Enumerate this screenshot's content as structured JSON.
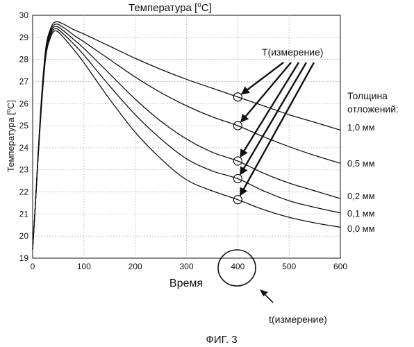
{
  "chart_data": {
    "type": "line",
    "title": "Температура [°C]",
    "title_main": "Температура ",
    "title_unit_o": "o",
    "title_unit_c": "C",
    "xlabel": "Время",
    "ylabel": "Температура [°C]",
    "ylabel_main": "Температура [",
    "ylabel_unit_o": "o",
    "ylabel_unit_c": "C]",
    "xlim": [
      0,
      600
    ],
    "ylim": [
      19,
      30
    ],
    "xticks": [
      0,
      100,
      200,
      300,
      400,
      500,
      600
    ],
    "yticks": [
      19,
      20,
      21,
      22,
      23,
      24,
      25,
      26,
      27,
      28,
      29,
      30
    ],
    "grid": true,
    "x": [
      0,
      5,
      15,
      25,
      35,
      45,
      60,
      80,
      100,
      150,
      200,
      250,
      300,
      350,
      400,
      450,
      500,
      550,
      600
    ],
    "series": [
      {
        "name": "1,0 мм",
        "values": [
          19.4,
          21.3,
          25.5,
          28.4,
          29.4,
          29.7,
          29.6,
          29.35,
          29.15,
          28.6,
          28.05,
          27.55,
          27.1,
          26.7,
          26.3,
          25.9,
          25.5,
          25.15,
          24.8
        ]
      },
      {
        "name": "0,5 мм",
        "values": [
          19.4,
          21.3,
          25.4,
          28.3,
          29.3,
          29.6,
          29.45,
          29.1,
          28.8,
          28.0,
          27.2,
          26.5,
          25.9,
          25.4,
          25.0,
          24.5,
          24.05,
          23.65,
          23.3
        ]
      },
      {
        "name": "0,2 мм",
        "values": [
          19.4,
          21.3,
          25.3,
          28.2,
          29.2,
          29.5,
          29.3,
          28.9,
          28.5,
          27.35,
          26.2,
          25.2,
          24.4,
          23.8,
          23.4,
          22.85,
          22.4,
          22.05,
          21.7
        ]
      },
      {
        "name": "0,1 мм",
        "values": [
          19.4,
          21.3,
          25.2,
          28.1,
          29.1,
          29.4,
          29.15,
          28.7,
          28.2,
          26.8,
          25.5,
          24.4,
          23.5,
          22.95,
          22.6,
          22.05,
          21.6,
          21.3,
          21.05
        ]
      },
      {
        "name": "0,0 мм",
        "values": [
          19.4,
          21.3,
          25.1,
          28.0,
          29.0,
          29.3,
          29.0,
          28.45,
          27.85,
          26.2,
          24.7,
          23.5,
          22.55,
          22.05,
          21.65,
          21.2,
          20.85,
          20.6,
          20.4
        ]
      }
    ],
    "measurement_time": 400,
    "measurement_points": [
      26.3,
      25.0,
      23.4,
      22.6,
      21.65
    ],
    "legend_title_line1": "Толщина",
    "legend_title_line2": "отложений:",
    "annotation_T_prefix": "T(",
    "annotation_T_word": "измерение",
    "annotation_T_suffix": ")",
    "annotation_t_prefix": "t(",
    "annotation_t_word": "измерение",
    "annotation_t_suffix": ")"
  },
  "caption": "ФИГ. 3"
}
